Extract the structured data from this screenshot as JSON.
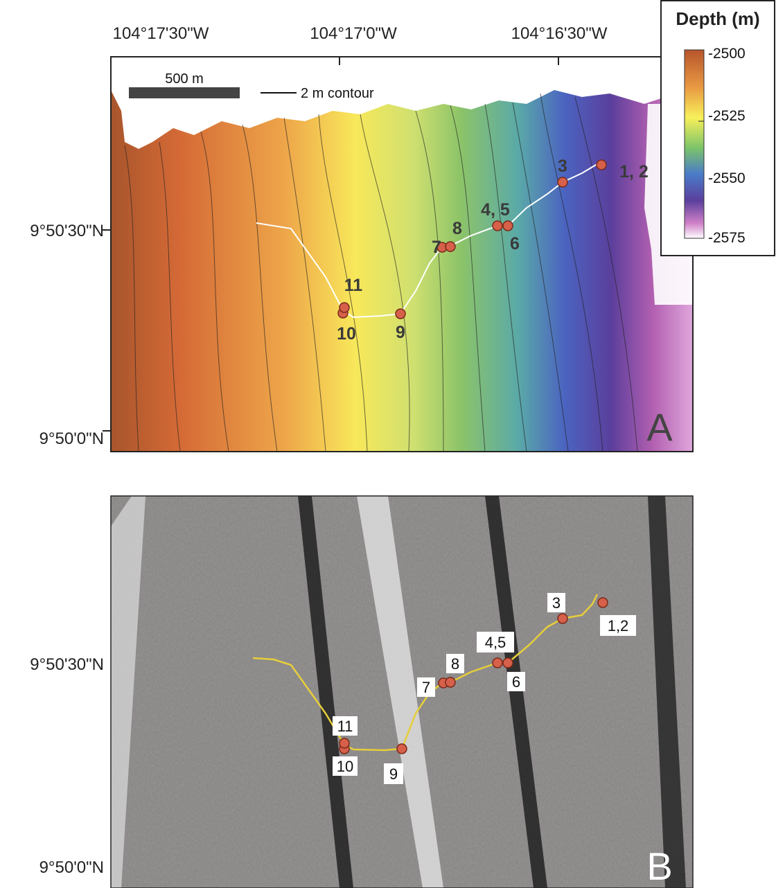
{
  "longitude_labels": [
    "104°17'30\"W",
    "104°17'0\"W",
    "104°16'30\"W"
  ],
  "panel_a": {
    "latitude_labels": [
      "9°50'30\"N",
      "9°50'0\"N"
    ],
    "scale_bar": "500 m",
    "contour_legend": "2 m contour",
    "stations": [
      "1, 2",
      "3",
      "4, 5",
      "6",
      "7",
      "8",
      "9",
      "10",
      "11"
    ],
    "letter": "A"
  },
  "colorbar": {
    "title": "Depth (m)",
    "ticks": [
      "-2500",
      "-2525",
      "-2550",
      "-2575"
    ]
  },
  "panel_b": {
    "latitude_labels": [
      "9°50'30\"N",
      "9°50'0\"N"
    ],
    "stations": [
      "1,2",
      "3",
      "4,5",
      "6",
      "7",
      "8",
      "9",
      "10",
      "11"
    ],
    "letter": "B"
  }
}
